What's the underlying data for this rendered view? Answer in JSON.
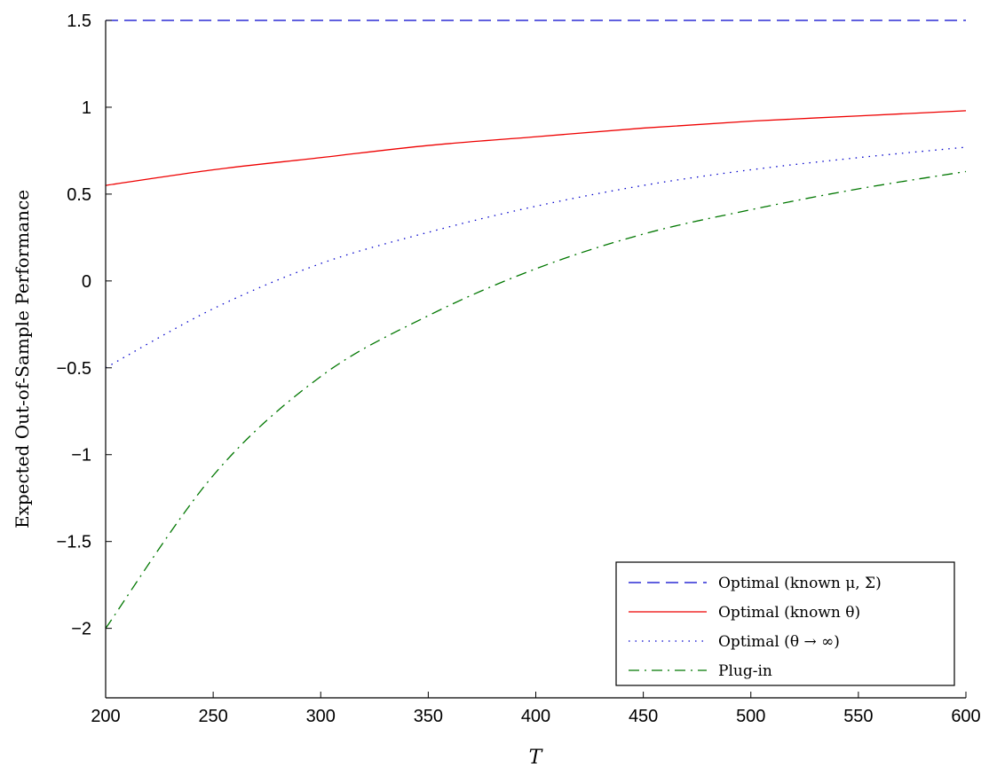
{
  "chart_data": {
    "type": "line",
    "title": "",
    "xlabel": "T",
    "ylabel": "Expected Out-of-Sample Performance",
    "xlim": [
      200,
      600
    ],
    "ylim": [
      -2.4,
      1.5
    ],
    "grid": false,
    "legend_position": "bottom-right",
    "x_ticks": [
      200,
      250,
      300,
      350,
      400,
      450,
      500,
      550,
      600
    ],
    "x_tick_labels": [
      "200",
      "250",
      "300",
      "350",
      "400",
      "450",
      "500",
      "550",
      "600"
    ],
    "y_ticks": [
      1.5,
      1,
      0.5,
      0,
      -0.5,
      -1,
      -1.5,
      -2
    ],
    "y_tick_labels": [
      "1.5",
      "1",
      "0.5",
      "0",
      "−0.5",
      "−1",
      "−1.5",
      "−2"
    ],
    "x": [
      200,
      250,
      300,
      350,
      400,
      450,
      500,
      550,
      600
    ],
    "series": [
      {
        "name": "Optimal (known μ, Σ)",
        "color": "#0000cc",
        "dash": "dashed",
        "values": [
          1.5,
          1.5,
          1.5,
          1.5,
          1.5,
          1.5,
          1.5,
          1.5,
          1.5
        ]
      },
      {
        "name": "Optimal (known θ)",
        "color": "#ee0000",
        "dash": "solid",
        "values": [
          0.55,
          0.64,
          0.71,
          0.78,
          0.83,
          0.88,
          0.92,
          0.95,
          0.98
        ]
      },
      {
        "name": "Optimal (θ → ∞)",
        "color": "#0000cc",
        "dash": "dotted",
        "values": [
          -0.5,
          -0.16,
          0.1,
          0.28,
          0.43,
          0.55,
          0.64,
          0.71,
          0.77
        ]
      },
      {
        "name": "Plug-in",
        "color": "#007700",
        "dash": "dashdot",
        "values": [
          -2.0,
          -1.12,
          -0.55,
          -0.2,
          0.07,
          0.27,
          0.41,
          0.53,
          0.63
        ]
      }
    ]
  }
}
